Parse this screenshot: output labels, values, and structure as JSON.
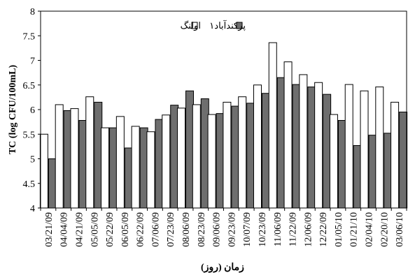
{
  "chart_data": {
    "type": "bar",
    "title": "",
    "ylabel": "TC (log CFU/100mL)",
    "xlabel": "زمان (روز)",
    "ylim": [
      4,
      8
    ],
    "yticks": [
      "4",
      "4.5",
      "5",
      "5.5",
      "6",
      "6.5",
      "7",
      "7.5",
      "8"
    ],
    "grid": false,
    "legend_position": "top-right",
    "categories": [
      "03/21/09",
      "04/04/09",
      "04/21/09",
      "05/05/09",
      "05/22/09",
      "06/05/09",
      "06/22/09",
      "07/06/09",
      "07/23/09",
      "08/06/09",
      "08/23/09",
      "09/06/09",
      "09/23/09",
      "10/07/09",
      "10/23/09",
      "11/06/09",
      "11/22/09",
      "12/06/09",
      "12/22/09",
      "01/05/10",
      "01/21/10",
      "02/04/10",
      "02/20/10",
      "03/06/10"
    ],
    "series": [
      {
        "name": "اولنگ",
        "color": "#ffffff",
        "values": [
          5.5,
          6.1,
          6.02,
          6.26,
          5.63,
          5.86,
          5.66,
          5.55,
          5.89,
          6.03,
          6.1,
          5.9,
          6.15,
          6.26,
          6.5,
          7.36,
          6.97,
          6.71,
          6.55,
          5.9,
          6.51,
          6.38,
          6.46,
          6.15
        ]
      },
      {
        "name": "پرکندآباد۱",
        "color": "#6e6e6e",
        "values": [
          5.0,
          5.98,
          5.78,
          6.15,
          5.63,
          5.22,
          5.63,
          5.8,
          6.09,
          6.38,
          6.22,
          5.92,
          6.07,
          6.13,
          6.33,
          6.65,
          6.51,
          6.46,
          6.31,
          5.78,
          5.27,
          5.48,
          5.52,
          5.95
        ]
      }
    ]
  }
}
